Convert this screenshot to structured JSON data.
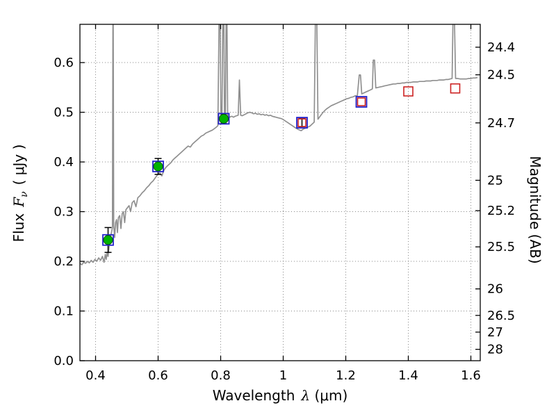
{
  "chart_data": {
    "type": "line",
    "title": "",
    "xlabel": "Wavelength λ (μm)",
    "xlabel_parts": {
      "prefix": "Wavelength",
      "symbol": "λ",
      "units": "(μm)"
    },
    "ylabel_left": "Flux Fν ( μJy )",
    "ylabel_left_parts": {
      "prefix": "Flux",
      "symbol": "F",
      "subscript": "ν",
      "units": "( μJy )"
    },
    "ylabel_right": "Magnitude (AB)",
    "xlim": [
      0.35,
      1.63
    ],
    "ylim_flux": [
      0.0,
      0.677
    ],
    "grid": true,
    "x_ticks": [
      0.4,
      0.6,
      0.8,
      1.0,
      1.2,
      1.4,
      1.6
    ],
    "x_tick_labels": [
      "0.4",
      "0.6",
      "0.8",
      "1",
      "1.2",
      "1.4",
      "1.6"
    ],
    "y_ticks_left": [
      0.0,
      0.1,
      0.2,
      0.3,
      0.4,
      0.5,
      0.6
    ],
    "y_tick_labels_left": [
      "0.0",
      "0.1",
      "0.2",
      "0.3",
      "0.4",
      "0.5",
      "0.6"
    ],
    "y_ticks_right_mag": [
      24.4,
      24.5,
      24.7,
      25.0,
      25.2,
      25.5,
      26.0,
      26.5,
      27.0,
      28.0
    ],
    "y_tick_labels_right": [
      "24.4",
      "24.5",
      "24.7",
      "25",
      "25.2",
      "25.5",
      "26",
      "26.5",
      "27",
      "28"
    ],
    "mag_zeropoint_ujy": 23.9,
    "colors": {
      "spectrum_gray": "#909090",
      "observed_green": "#00b300",
      "observed_green_edge": "#005500",
      "model_blue": "#2323cc",
      "model_red": "#cc2222",
      "errorbar_black": "#000000",
      "grid": "#888888",
      "frame": "#000000"
    },
    "photometry_points": [
      {
        "wavelength": 0.44,
        "flux": 0.243,
        "flux_err": 0.025,
        "observed_circle": true,
        "blue_square": true,
        "red_square": false
      },
      {
        "wavelength": 0.6,
        "flux": 0.391,
        "flux_err": 0.016,
        "observed_circle": true,
        "blue_square": true,
        "red_square": false
      },
      {
        "wavelength": 0.81,
        "flux": 0.487,
        "flux_err": 0.01,
        "observed_circle": true,
        "blue_square": true,
        "red_square": false
      },
      {
        "wavelength": 1.06,
        "flux": 0.479,
        "flux_err": 0.008,
        "observed_circle": false,
        "blue_square": true,
        "red_square": true
      },
      {
        "wavelength": 1.25,
        "flux": 0.521,
        "flux_err": null,
        "observed_circle": false,
        "blue_square": true,
        "red_square": true
      },
      {
        "wavelength": 1.4,
        "flux": 0.542,
        "flux_err": null,
        "observed_circle": false,
        "blue_square": false,
        "red_square": true
      },
      {
        "wavelength": 1.55,
        "flux": 0.548,
        "flux_err": null,
        "observed_circle": false,
        "blue_square": false,
        "red_square": true
      }
    ],
    "spectrum": {
      "name": "model-spectrum",
      "points": [
        [
          0.35,
          0.196
        ],
        [
          0.356,
          0.193
        ],
        [
          0.362,
          0.198
        ],
        [
          0.368,
          0.196
        ],
        [
          0.374,
          0.2
        ],
        [
          0.38,
          0.197
        ],
        [
          0.386,
          0.202
        ],
        [
          0.392,
          0.198
        ],
        [
          0.398,
          0.204
        ],
        [
          0.404,
          0.2
        ],
        [
          0.41,
          0.207
        ],
        [
          0.416,
          0.202
        ],
        [
          0.422,
          0.21
        ],
        [
          0.427,
          0.198
        ],
        [
          0.431,
          0.214
        ],
        [
          0.434,
          0.204
        ],
        [
          0.437,
          0.218
        ],
        [
          0.44,
          0.21
        ],
        [
          0.443,
          0.228
        ],
        [
          0.446,
          0.24
        ],
        [
          0.449,
          0.252
        ],
        [
          0.452,
          0.262
        ],
        [
          0.454,
          0.268
        ],
        [
          0.4555,
          0.7
        ],
        [
          0.4565,
          0.7
        ],
        [
          0.458,
          0.272
        ],
        [
          0.461,
          0.248
        ],
        [
          0.464,
          0.278
        ],
        [
          0.467,
          0.284
        ],
        [
          0.47,
          0.258
        ],
        [
          0.473,
          0.288
        ],
        [
          0.477,
          0.292
        ],
        [
          0.481,
          0.266
        ],
        [
          0.485,
          0.296
        ],
        [
          0.489,
          0.3
        ],
        [
          0.493,
          0.278
        ],
        [
          0.497,
          0.304
        ],
        [
          0.502,
          0.308
        ],
        [
          0.507,
          0.312
        ],
        [
          0.512,
          0.3
        ],
        [
          0.517,
          0.318
        ],
        [
          0.523,
          0.322
        ],
        [
          0.529,
          0.31
        ],
        [
          0.535,
          0.328
        ],
        [
          0.542,
          0.332
        ],
        [
          0.549,
          0.338
        ],
        [
          0.556,
          0.342
        ],
        [
          0.563,
          0.348
        ],
        [
          0.57,
          0.352
        ],
        [
          0.577,
          0.358
        ],
        [
          0.584,
          0.362
        ],
        [
          0.591,
          0.368
        ],
        [
          0.598,
          0.374
        ],
        [
          0.605,
          0.378
        ],
        [
          0.612,
          0.372
        ],
        [
          0.619,
          0.384
        ],
        [
          0.626,
          0.39
        ],
        [
          0.633,
          0.394
        ],
        [
          0.64,
          0.398
        ],
        [
          0.647,
          0.404
        ],
        [
          0.654,
          0.408
        ],
        [
          0.661,
          0.412
        ],
        [
          0.668,
          0.416
        ],
        [
          0.675,
          0.42
        ],
        [
          0.682,
          0.424
        ],
        [
          0.689,
          0.428
        ],
        [
          0.696,
          0.432
        ],
        [
          0.703,
          0.43
        ],
        [
          0.71,
          0.436
        ],
        [
          0.717,
          0.44
        ],
        [
          0.724,
          0.444
        ],
        [
          0.731,
          0.448
        ],
        [
          0.738,
          0.452
        ],
        [
          0.745,
          0.454
        ],
        [
          0.752,
          0.458
        ],
        [
          0.759,
          0.46
        ],
        [
          0.766,
          0.462
        ],
        [
          0.773,
          0.464
        ],
        [
          0.78,
          0.467
        ],
        [
          0.786,
          0.47
        ],
        [
          0.791,
          0.473
        ],
        [
          0.795,
          0.7
        ],
        [
          0.798,
          0.7
        ],
        [
          0.801,
          0.477
        ],
        [
          0.804,
          0.48
        ],
        [
          0.807,
          0.7
        ],
        [
          0.81,
          0.7
        ],
        [
          0.8125,
          0.483
        ],
        [
          0.815,
          0.484
        ],
        [
          0.8175,
          0.7
        ],
        [
          0.82,
          0.7
        ],
        [
          0.8225,
          0.487
        ],
        [
          0.826,
          0.489
        ],
        [
          0.831,
          0.491
        ],
        [
          0.836,
          0.492
        ],
        [
          0.841,
          0.49
        ],
        [
          0.846,
          0.492
        ],
        [
          0.851,
          0.493
        ],
        [
          0.856,
          0.494
        ],
        [
          0.86,
          0.565
        ],
        [
          0.864,
          0.494
        ],
        [
          0.869,
          0.493
        ],
        [
          0.875,
          0.495
        ],
        [
          0.881,
          0.497
        ],
        [
          0.887,
          0.499
        ],
        [
          0.893,
          0.5
        ],
        [
          0.899,
          0.499
        ],
        [
          0.905,
          0.497
        ],
        [
          0.911,
          0.498
        ],
        [
          0.917,
          0.496
        ],
        [
          0.923,
          0.497
        ],
        [
          0.929,
          0.495
        ],
        [
          0.935,
          0.496
        ],
        [
          0.941,
          0.494
        ],
        [
          0.947,
          0.495
        ],
        [
          0.953,
          0.493
        ],
        [
          0.959,
          0.494
        ],
        [
          0.965,
          0.492
        ],
        [
          0.971,
          0.491
        ],
        [
          0.977,
          0.49
        ],
        [
          0.983,
          0.489
        ],
        [
          0.989,
          0.488
        ],
        [
          0.995,
          0.487
        ],
        [
          1.001,
          0.485
        ],
        [
          1.008,
          0.482
        ],
        [
          1.015,
          0.479
        ],
        [
          1.022,
          0.476
        ],
        [
          1.029,
          0.473
        ],
        [
          1.036,
          0.47
        ],
        [
          1.043,
          0.467
        ],
        [
          1.05,
          0.465
        ],
        [
          1.057,
          0.463
        ],
        [
          1.064,
          0.466
        ],
        [
          1.071,
          0.468
        ],
        [
          1.078,
          0.47
        ],
        [
          1.085,
          0.472
        ],
        [
          1.092,
          0.476
        ],
        [
          1.099,
          0.48
        ],
        [
          1.103,
          0.7
        ],
        [
          1.107,
          0.7
        ],
        [
          1.111,
          0.486
        ],
        [
          1.118,
          0.492
        ],
        [
          1.125,
          0.498
        ],
        [
          1.132,
          0.503
        ],
        [
          1.139,
          0.507
        ],
        [
          1.146,
          0.51
        ],
        [
          1.153,
          0.513
        ],
        [
          1.16,
          0.515
        ],
        [
          1.167,
          0.517
        ],
        [
          1.174,
          0.519
        ],
        [
          1.181,
          0.521
        ],
        [
          1.188,
          0.523
        ],
        [
          1.195,
          0.525
        ],
        [
          1.202,
          0.527
        ],
        [
          1.209,
          0.528
        ],
        [
          1.216,
          0.53
        ],
        [
          1.223,
          0.531
        ],
        [
          1.23,
          0.533
        ],
        [
          1.237,
          0.534
        ],
        [
          1.243,
          0.575
        ],
        [
          1.247,
          0.575
        ],
        [
          1.251,
          0.537
        ],
        [
          1.258,
          0.539
        ],
        [
          1.265,
          0.541
        ],
        [
          1.272,
          0.543
        ],
        [
          1.279,
          0.545
        ],
        [
          1.285,
          0.547
        ],
        [
          1.288,
          0.605
        ],
        [
          1.292,
          0.605
        ],
        [
          1.296,
          0.549
        ],
        [
          1.303,
          0.55
        ],
        [
          1.31,
          0.551
        ],
        [
          1.317,
          0.552
        ],
        [
          1.324,
          0.553
        ],
        [
          1.331,
          0.554
        ],
        [
          1.338,
          0.555
        ],
        [
          1.345,
          0.556
        ],
        [
          1.352,
          0.557
        ],
        [
          1.359,
          0.557
        ],
        [
          1.366,
          0.558
        ],
        [
          1.373,
          0.558
        ],
        [
          1.38,
          0.559
        ],
        [
          1.387,
          0.559
        ],
        [
          1.394,
          0.56
        ],
        [
          1.401,
          0.56
        ],
        [
          1.408,
          0.56
        ],
        [
          1.415,
          0.561
        ],
        [
          1.422,
          0.561
        ],
        [
          1.429,
          0.561
        ],
        [
          1.436,
          0.562
        ],
        [
          1.443,
          0.562
        ],
        [
          1.45,
          0.562
        ],
        [
          1.457,
          0.563
        ],
        [
          1.464,
          0.563
        ],
        [
          1.471,
          0.563
        ],
        [
          1.478,
          0.564
        ],
        [
          1.485,
          0.564
        ],
        [
          1.492,
          0.564
        ],
        [
          1.499,
          0.565
        ],
        [
          1.506,
          0.565
        ],
        [
          1.513,
          0.565
        ],
        [
          1.52,
          0.566
        ],
        [
          1.527,
          0.566
        ],
        [
          1.534,
          0.567
        ],
        [
          1.54,
          0.568
        ],
        [
          1.543,
          0.7
        ],
        [
          1.547,
          0.7
        ],
        [
          1.551,
          0.568
        ],
        [
          1.558,
          0.568
        ],
        [
          1.565,
          0.567
        ],
        [
          1.572,
          0.567
        ],
        [
          1.579,
          0.567
        ],
        [
          1.586,
          0.567
        ],
        [
          1.593,
          0.568
        ],
        [
          1.6,
          0.568
        ],
        [
          1.607,
          0.569
        ],
        [
          1.614,
          0.569
        ],
        [
          1.621,
          0.57
        ]
      ]
    }
  }
}
